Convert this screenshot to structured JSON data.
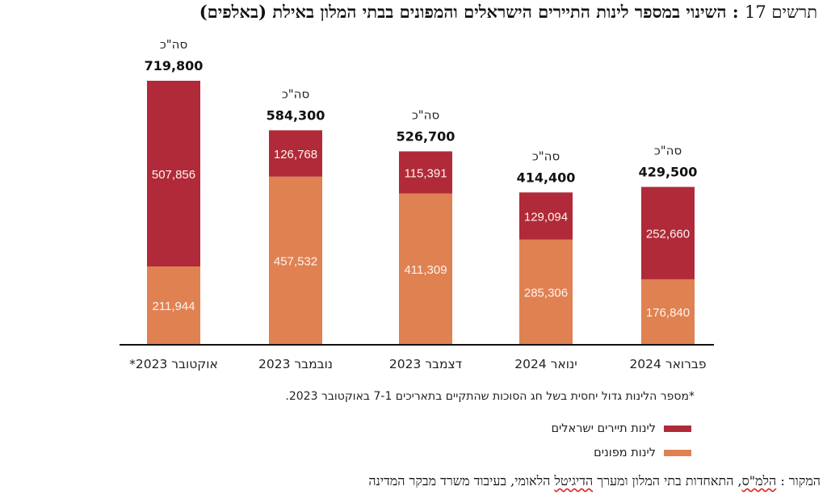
{
  "title": {
    "prefix": "תרשים 17",
    "separator": " : ",
    "text": "השינוי במספר לינות התיירים הישראלים והמפונים בבתי המלון באילת (באלפים)"
  },
  "chart_data": {
    "type": "bar",
    "stacked": true,
    "title": "השינוי במספר לינות התיירים הישראלים והמפונים בבתי המלון באילת (באלפים)",
    "xlabel": "",
    "ylabel": "",
    "categories": [
      "אוקטובר 2023*",
      "נובמבר 2023",
      "דצמבר 2023",
      "ינואר 2024",
      "פברואר 2024"
    ],
    "series": [
      {
        "name": "לינות מפונים",
        "color": "#e08152",
        "values": [
          211944,
          457532,
          411309,
          285306,
          176840
        ],
        "labels": [
          "211,944",
          "457,532",
          "411,309",
          "285,306",
          "176,840"
        ]
      },
      {
        "name": "לינות תיירים ישראלים",
        "color": "#b02a3a",
        "values": [
          507856,
          126768,
          115391,
          129094,
          252660
        ],
        "labels": [
          "507,856",
          "126,768",
          "115,391",
          "129,094",
          "252,660"
        ]
      }
    ],
    "totals": {
      "label": "סה\"כ",
      "values": [
        719800,
        584300,
        526700,
        414400,
        429500
      ],
      "labels": [
        "719,800",
        "584,300",
        "526,700",
        "414,400",
        "429,500"
      ]
    },
    "ylim": [
      0,
      719800
    ],
    "grid": false,
    "legend_position": "bottom-right"
  },
  "footnote": "*מספר הלינות גדול יחסית בשל חג הסוכות שהתקיים בתאריכים 7-1 באוקטובר 2023.",
  "legend": [
    {
      "label": "לינות תיירים ישראלים",
      "color": "#b02a3a"
    },
    {
      "label": "לינות מפונים",
      "color": "#e08152"
    }
  ],
  "source": {
    "label": "המקור",
    "sep": " : ",
    "part1": "הלמ\"ס",
    "part2": ", התאחדות בתי המלון ומערך ",
    "part3": "הדיגיטל",
    "part4": " הלאומי, בעיבוד משרד מבקר המדינה"
  }
}
